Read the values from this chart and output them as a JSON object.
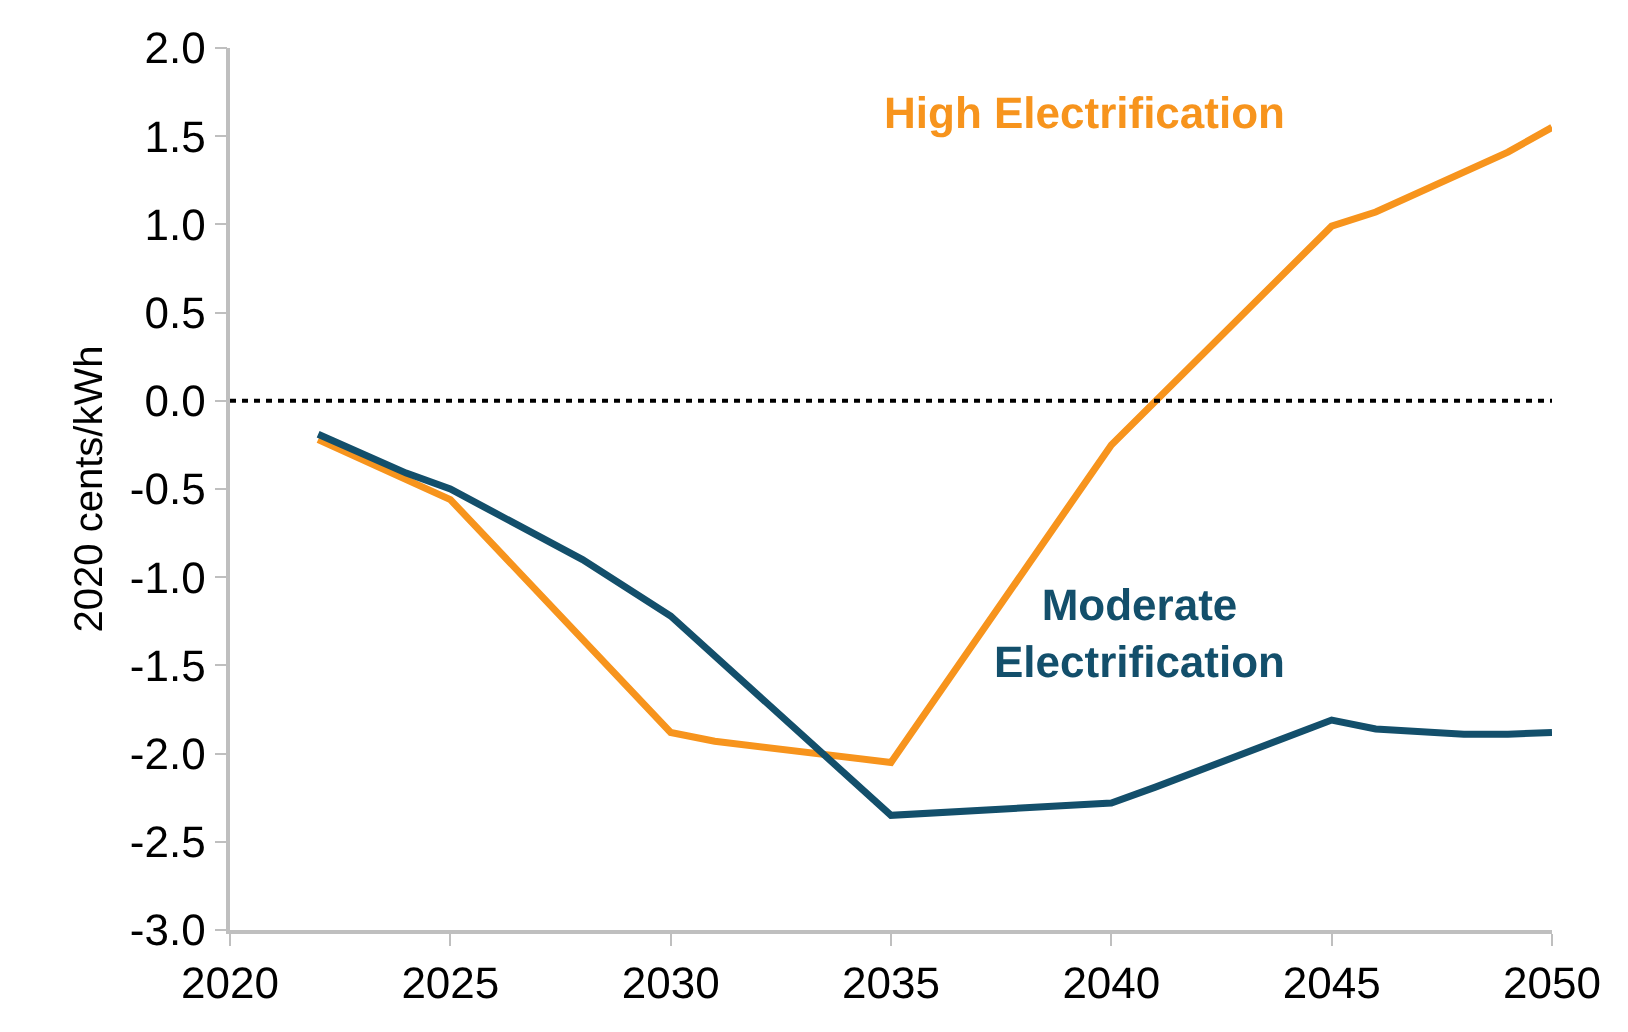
{
  "chart_data": {
    "type": "line",
    "ylabel": "2020 cents/kWh",
    "xlim": [
      2020,
      2050
    ],
    "xticks": [
      2020,
      2025,
      2030,
      2035,
      2040,
      2045,
      2050
    ],
    "ylim": [
      -3.0,
      2.0
    ],
    "yticks": [
      {
        "value": -3,
        "label": "-3.0"
      },
      {
        "value": -2.5,
        "label": "-2.5"
      },
      {
        "value": -2,
        "label": "-2.0"
      },
      {
        "value": -1.5,
        "label": "-1.5"
      },
      {
        "value": -1,
        "label": "-1.0"
      },
      {
        "value": -0.5,
        "label": "-0.5"
      },
      {
        "value": 0,
        "label": "0.0"
      },
      {
        "value": 0.5,
        "label": "0.5"
      },
      {
        "value": 1,
        "label": "1.0"
      },
      {
        "value": 1.5,
        "label": "1.5"
      },
      {
        "value": 2,
        "label": "2.0"
      }
    ],
    "grid": false,
    "legend": false,
    "marker": "none",
    "line_style": "solid",
    "ref_lines": [
      {
        "axis": "y",
        "value": 0,
        "color": "#000000",
        "line_style": "dotted"
      }
    ],
    "series": [
      {
        "name": "High Electrification",
        "color": "#f7941d",
        "x": [
          2022,
          2025,
          2030,
          2031,
          2035,
          2040,
          2045,
          2046,
          2049,
          2050
        ],
        "values": [
          -0.22,
          -0.56,
          -1.88,
          -1.93,
          -2.05,
          -0.25,
          0.99,
          1.07,
          1.41,
          1.55
        ]
      },
      {
        "name": "Moderate Electrification",
        "color": "#134f6b",
        "x": [
          2022,
          2024,
          2025,
          2028,
          2030,
          2035,
          2040,
          2041,
          2045,
          2046,
          2048,
          2049,
          2050
        ],
        "values": [
          -0.19,
          -0.41,
          -0.5,
          -0.9,
          -1.22,
          -2.35,
          -2.28,
          -2.19,
          -1.81,
          -1.86,
          -1.89,
          -1.89,
          -1.88
        ]
      }
    ]
  }
}
